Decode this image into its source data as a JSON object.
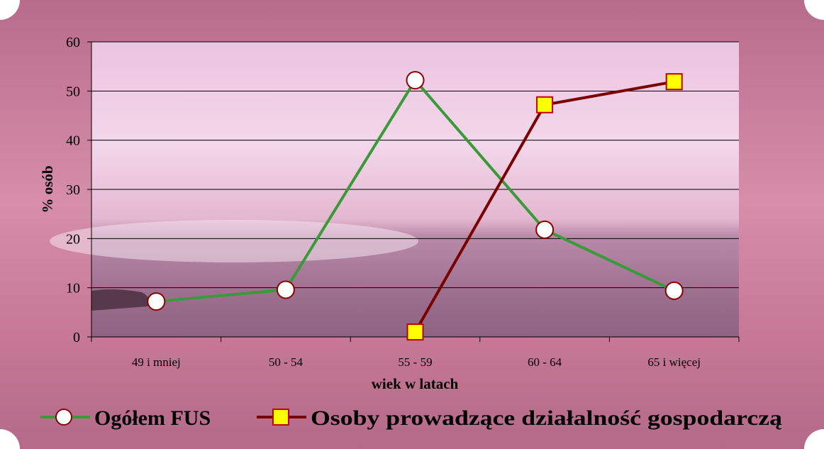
{
  "colors": {
    "background": "#c77a98",
    "series_1_line": "#3a9a3a",
    "series_1_marker_fill": "#ffffff",
    "series_1_marker_stroke": "#8b0000",
    "series_2_line": "#7a0000",
    "series_2_marker_fill": "#ffff00",
    "series_2_marker_stroke": "#c00000",
    "gridline": "#000000"
  },
  "chart_data": {
    "type": "line",
    "categories": [
      "49 i mniej",
      "50 - 54",
      "55 - 59",
      "60 - 64",
      "65  i więcej"
    ],
    "series": [
      {
        "name": "Ogółem FUS",
        "values": [
          7.2,
          9.6,
          52.2,
          21.8,
          9.4
        ],
        "marker": "circle"
      },
      {
        "name": "Osoby prowadzące działalność gospodarczą",
        "values": [
          null,
          null,
          1.0,
          47.2,
          51.9
        ],
        "marker": "square"
      }
    ],
    "xlabel": "wiek w latach",
    "ylabel": "% osób",
    "ylim": [
      0,
      60
    ],
    "yticks": [
      "0",
      "10",
      "20",
      "30",
      "40",
      "50",
      "60"
    ],
    "grid": true,
    "legend_position": "bottom"
  }
}
